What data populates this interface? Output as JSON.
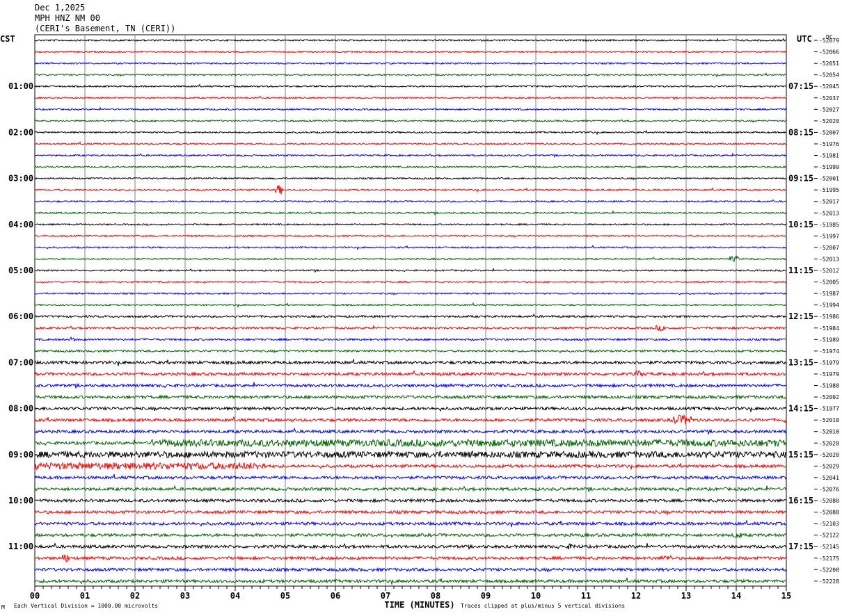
{
  "header": {
    "date": "Dec 1,2025",
    "station": "MPH HNZ NM 00",
    "location": "(CERI's Basement, TN (CERI))"
  },
  "left_tz": "CST",
  "right_tz": "UTC",
  "dc_label": "DC",
  "footer": {
    "scale_note": "Each Vertical Division = 1000.00 microvolts",
    "clip_note": "Traces clipped at plus/minus 5 vertical divisions",
    "mark": "M"
  },
  "colors": {
    "cycle": [
      "#000000",
      "#ff0000",
      "#0000ff",
      "#006400"
    ],
    "grid": "#808080"
  },
  "chart_data": {
    "type": "line",
    "title": "MPH HNZ NM 00",
    "xlabel": "TIME (MINUTES)",
    "ylabel": "",
    "x_ticks": [
      "00",
      "01",
      "02",
      "03",
      "04",
      "05",
      "06",
      "07",
      "08",
      "09",
      "10",
      "11",
      "12",
      "13",
      "14",
      "15"
    ],
    "xlim": [
      0,
      15
    ],
    "left_hour_labels": [
      "01:00",
      "02:00",
      "03:00",
      "04:00",
      "05:00",
      "06:00",
      "07:00",
      "08:00",
      "09:00",
      "10:00",
      "11:00"
    ],
    "right_hour_labels": [
      "07:15",
      "08:15",
      "09:15",
      "10:15",
      "11:15",
      "12:15",
      "13:15",
      "14:15",
      "15:15",
      "16:15",
      "17:15"
    ],
    "dc_offsets": [
      -52079,
      -52066,
      -52051,
      -52054,
      -52045,
      -52037,
      -52027,
      -52020,
      -52007,
      -51976,
      -51981,
      -51999,
      -52001,
      -51995,
      -52017,
      -52013,
      -51985,
      -51997,
      -52007,
      -52013,
      -52012,
      -52005,
      -51987,
      -51994,
      -51986,
      -51984,
      -51989,
      -51974,
      -51979,
      -51979,
      -51988,
      -52002,
      -51977,
      -52010,
      -52010,
      -52028,
      -52020,
      -52029,
      -52041,
      -52076,
      -52080,
      -52088,
      -52103,
      -52122,
      -52145,
      -52175,
      -52200,
      -52228
    ],
    "traces": 48
  }
}
